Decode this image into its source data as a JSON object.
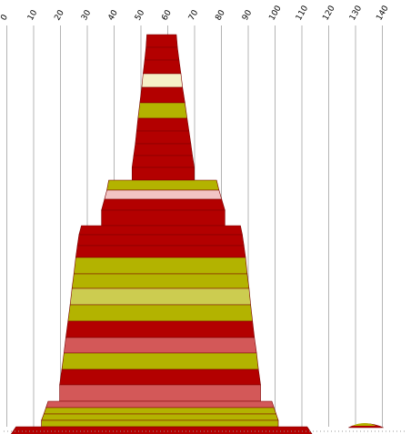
{
  "colors": {
    "dark_red": "#b30000",
    "olive": "#b3b300",
    "cream": "#f5f0c8",
    "pink": "#f2c4c4",
    "salmon": "#d35858",
    "light_olive": "#cccc50",
    "grid": "#b4b4b4",
    "outline": "#7a0000"
  },
  "chart_data": {
    "type": "area",
    "title": "",
    "xlabel": "",
    "ylabel": "",
    "x_axis_position": "top",
    "x_ticks": [
      0,
      10,
      20,
      30,
      40,
      50,
      60,
      70,
      80,
      90,
      100,
      110,
      120,
      130,
      140
    ],
    "x_tick_labels": [
      "0",
      "10",
      "20",
      "30",
      "40",
      "50",
      "60",
      "70",
      "80",
      "90",
      "100",
      "110",
      "120",
      "130",
      "140"
    ],
    "xlim": [
      0,
      140
    ],
    "grid": true,
    "legend": "none",
    "bands": [
      {
        "x_range": [
          52.2,
          63.2
        ],
        "color": "dark_red"
      },
      {
        "x_range": [
          51.9,
          63.6
        ],
        "color": "dark_red"
      },
      {
        "x_range": [
          51.4,
          64.2
        ],
        "color": "dark_red"
      },
      {
        "x_range": [
          50.8,
          64.9
        ],
        "color": "cream"
      },
      {
        "x_range": [
          50.3,
          65.5
        ],
        "color": "dark_red"
      },
      {
        "x_range": [
          49.6,
          66.4
        ],
        "color": "olive"
      },
      {
        "x_range": [
          48.9,
          67.2
        ],
        "color": "dark_red"
      },
      {
        "x_range": [
          48.4,
          67.9
        ],
        "color": "dark_red"
      },
      {
        "x_range": [
          47.9,
          68.6
        ],
        "color": "dark_red"
      },
      {
        "x_range": [
          47.3,
          69.2
        ],
        "color": "dark_red"
      },
      {
        "x_range": [
          46.7,
          69.9
        ],
        "color": "dark_red"
      },
      {
        "x_range": [
          38.0,
          78.2
        ],
        "color": "olive"
      },
      {
        "x_range": [
          37.3,
          79.1
        ],
        "color": "pink"
      },
      {
        "x_range": [
          36.4,
          80.1
        ],
        "color": "dark_red"
      },
      {
        "x_range": [
          35.3,
          81.3
        ],
        "color": "dark_red"
      },
      {
        "x_range": [
          27.8,
          87.1
        ],
        "color": "dark_red"
      },
      {
        "x_range": [
          26.9,
          87.8
        ],
        "color": "dark_red"
      },
      {
        "x_range": [
          26.3,
          88.4
        ],
        "color": "dark_red"
      },
      {
        "x_range": [
          25.7,
          89.0
        ],
        "color": "olive"
      },
      {
        "x_range": [
          25.0,
          89.6
        ],
        "color": "olive"
      },
      {
        "x_range": [
          24.3,
          90.3
        ],
        "color": "light_olive"
      },
      {
        "x_range": [
          23.6,
          90.9
        ],
        "color": "olive"
      },
      {
        "x_range": [
          22.8,
          91.6
        ],
        "color": "dark_red"
      },
      {
        "x_range": [
          22.0,
          92.3
        ],
        "color": "salmon"
      },
      {
        "x_range": [
          21.3,
          93.1
        ],
        "color": "olive"
      },
      {
        "x_range": [
          20.5,
          93.8
        ],
        "color": "dark_red"
      },
      {
        "x_range": [
          19.7,
          94.6
        ],
        "color": "salmon"
      },
      {
        "x_range": [
          15.4,
          98.8
        ],
        "color": "salmon"
      },
      {
        "x_range": [
          14.6,
          99.6
        ],
        "color": "olive"
      },
      {
        "x_range": [
          13.8,
          100.4
        ],
        "color": "olive"
      },
      {
        "x_range": [
          12.9,
          101.2
        ],
        "color": "olive"
      },
      {
        "x_range": [
          1.4,
          114.0
        ],
        "color": "dark_red"
      }
    ],
    "side_mound": {
      "x_range": [
        127.4,
        140.4
      ],
      "peak_x": 133.4,
      "colors": [
        "dark_red",
        "olive"
      ]
    }
  }
}
